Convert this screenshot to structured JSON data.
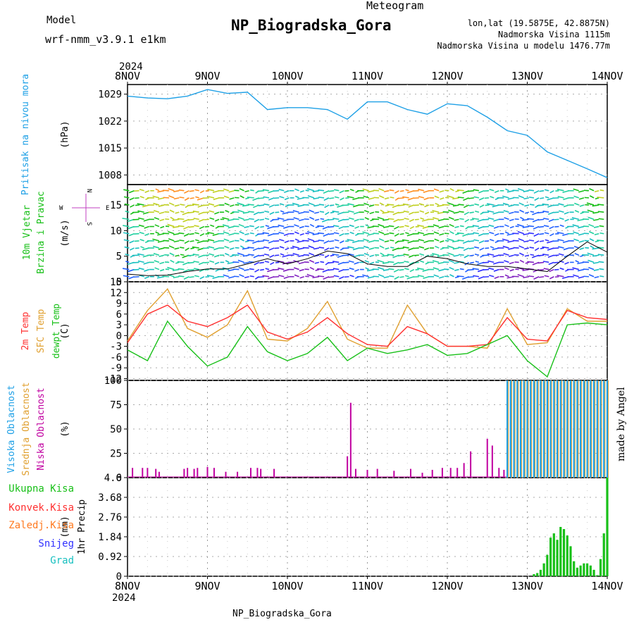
{
  "header": {
    "model_label": "Model",
    "model_name": "wrf-nmm_v3.9.1 e1km",
    "meteogram_label": "Meteogram",
    "station_title": "NP_Biogradska_Gora",
    "lonlat": "lon,lat (19.5875E, 42.8875N)",
    "elevation": "Nadmorska Visina 1115m",
    "model_elevation": "Nadmorska Visina u modelu 1476.77m",
    "year_top": "2024",
    "year_bottom": "2024",
    "footer_station": "NP_Biogradska_Gora",
    "watermark": "made by Angel"
  },
  "colors": {
    "pressure": "#1ea0e6",
    "wind_title": "#18c018",
    "wind_title2": "#18c018",
    "t2m": "#ff3030",
    "sfc": "#e0a030",
    "dewpt": "#18c018",
    "cloud_high": "#1ea0e6",
    "cloud_mid": "#e0a030",
    "cloud_low": "#c000a0",
    "precip_total": "#18c018",
    "precip_conv": "#ff3030",
    "precip_frz": "#ff7a20",
    "precip_snow": "#3030ff",
    "precip_hail": "#18c0c0",
    "compass": "#c040c0"
  },
  "compass": {
    "n": "N",
    "s": "S",
    "e": "E",
    "w": "W"
  },
  "chart_data": [
    {
      "type": "line",
      "x_ticks": [
        "8NOV",
        "9NOV",
        "10NOV",
        "11NOV",
        "12NOV",
        "13NOV",
        "14NOV"
      ],
      "y_title": "Pritisak na nivou mora",
      "ylabel": "(hPa)",
      "ylim": [
        1005.5,
        1031.5
      ],
      "yticks": [
        1029,
        1022,
        1015,
        1008
      ],
      "x_hours": [
        0,
        6,
        12,
        18,
        24,
        30,
        36,
        42,
        48,
        54,
        60,
        66,
        72,
        78,
        84,
        90,
        96,
        102,
        108,
        114,
        120,
        126,
        132,
        138,
        144
      ],
      "series": [
        {
          "values": [
            1028.5,
            1028,
            1027.8,
            1028.5,
            1030.2,
            1029.2,
            1029.5,
            1025,
            1025.5,
            1025.5,
            1025,
            1022.5,
            1027,
            1027,
            1025,
            1023.8,
            1026.5,
            1026,
            1023,
            1019.5,
            1018.3,
            1014,
            1011.8,
            1009.6,
            1007.3
          ]
        }
      ]
    },
    {
      "type": "line",
      "y_title": "10m Vjetar",
      "y_title2": "Brzina i Pravac",
      "ylabel": "(m/s)",
      "ylim": [
        0,
        19
      ],
      "yticks": [
        0,
        5,
        10,
        15
      ],
      "x_hours": [
        0,
        6,
        12,
        18,
        24,
        30,
        36,
        42,
        48,
        54,
        60,
        66,
        72,
        78,
        84,
        90,
        96,
        102,
        108,
        114,
        120,
        126,
        132,
        138,
        144
      ],
      "series": [
        {
          "values": [
            1.5,
            1.2,
            1.3,
            2,
            2.5,
            2.5,
            3.5,
            4.5,
            3.5,
            4.5,
            6,
            5.5,
            3.5,
            3,
            3,
            5,
            4.5,
            3.5,
            3,
            3,
            2.5,
            2,
            5,
            7.8,
            5.8
          ]
        }
      ]
    },
    {
      "type": "line",
      "y_title": "2m Temp",
      "y_title2": "SFC Temp",
      "y_title3": "dewpt Temp",
      "ylabel": "(C)",
      "ylim": [
        -12.5,
        15
      ],
      "yticks": [
        15,
        12,
        9,
        6,
        3,
        0,
        -3,
        -6,
        -9,
        -12
      ],
      "x_hours": [
        0,
        6,
        12,
        18,
        24,
        30,
        36,
        42,
        48,
        54,
        60,
        66,
        72,
        78,
        84,
        90,
        96,
        102,
        108,
        114,
        120,
        126,
        132,
        138,
        144
      ],
      "series": [
        {
          "name": "2m Temp",
          "values": [
            -2,
            6,
            8.5,
            4,
            2.5,
            5,
            8.5,
            1,
            -1,
            1,
            5,
            0.5,
            -2.5,
            -3,
            2.5,
            0.5,
            -3,
            -3,
            -2.5,
            5,
            -1,
            -1.5,
            7,
            5,
            4.5
          ]
        },
        {
          "name": "SFC Temp",
          "values": [
            -1.5,
            7,
            13,
            2,
            -0.5,
            3,
            12.5,
            -1,
            -1.5,
            2,
            9.5,
            -1,
            -3.5,
            -3.5,
            8.5,
            0.5,
            -3,
            -3,
            -3.5,
            7.5,
            -2.5,
            -2,
            7.5,
            4,
            4
          ]
        },
        {
          "name": "dewpt Temp",
          "values": [
            -4,
            -7,
            4,
            -3,
            -8.5,
            -6,
            2.5,
            -4.5,
            -7,
            -5,
            -0.5,
            -7,
            -3.5,
            -5,
            -4,
            -2.5,
            -5.5,
            -5,
            -2.5,
            0,
            -7,
            -11.5,
            3,
            3.5,
            3
          ]
        }
      ]
    },
    {
      "type": "bar",
      "y_title": "Visoka Oblacnost",
      "y_title2": "Srednja Oblacnost",
      "y_title3": "Niska Oblacnost",
      "ylabel": "(%)",
      "ylim": [
        0,
        100
      ],
      "yticks": [
        0,
        25,
        50,
        75,
        100
      ],
      "low_cloud_bars": {
        "x_hours": [
          1.5,
          4.5,
          6,
          8.5,
          9.5,
          17,
          18,
          20,
          21,
          24,
          26,
          29.5,
          33,
          37,
          39,
          40,
          44,
          66,
          67,
          68.5,
          72,
          75,
          80,
          85,
          88.5,
          91.5,
          94.5,
          97,
          99,
          101,
          103,
          108,
          109.5,
          111.5,
          113
        ],
        "values": [
          10,
          10,
          10,
          9,
          6,
          9,
          10,
          9,
          10,
          11,
          10,
          6,
          6,
          10,
          10,
          9,
          9,
          22,
          77,
          9,
          8,
          9,
          7,
          9,
          5,
          8,
          10,
          10,
          10,
          15,
          27,
          40,
          33,
          10,
          8
        ]
      },
      "high_mid_bars": {
        "x_range": [
          114,
          144
        ],
        "values": [
          100
        ]
      }
    },
    {
      "type": "bar",
      "y_title": "1hr Precip",
      "ylabel": "(mm)",
      "ylim": [
        0,
        4.6
      ],
      "yticks": [
        0,
        0.92,
        1.84,
        2.76,
        3.68,
        4.6
      ],
      "legend": [
        "Ukupna Kisa",
        "Konvek.Kisa",
        "Zaledj.Kisa",
        "Snijeg",
        "Grad"
      ],
      "x_hours": [
        122,
        123,
        124,
        125,
        126,
        127,
        128,
        129,
        130,
        131,
        132,
        133,
        134,
        135,
        136,
        137,
        138,
        139,
        140,
        141,
        142,
        143,
        144
      ],
      "values": [
        0.1,
        0.15,
        0.3,
        0.6,
        1.0,
        1.8,
        2.0,
        1.7,
        2.3,
        2.2,
        1.9,
        1.4,
        0.7,
        0.4,
        0.5,
        0.6,
        0.6,
        0.5,
        0.3,
        0.05,
        0.8,
        2.0,
        4.6
      ]
    }
  ]
}
